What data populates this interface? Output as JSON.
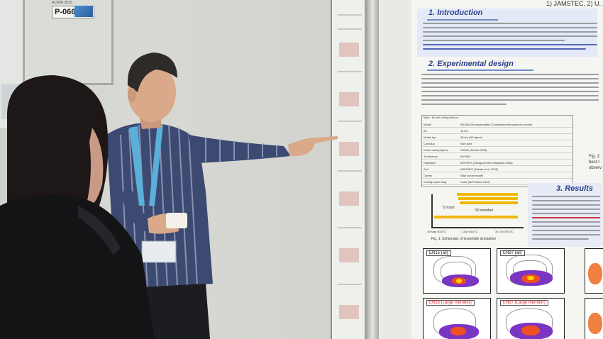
{
  "booth": {
    "panel_tag": "P-066",
    "panel_small_text": "ACRIM 2015"
  },
  "poster": {
    "header": "1) JAMSTEC, 2) U...",
    "sections": [
      {
        "title": "1. Introduction"
      },
      {
        "title": "2. Experimental design"
      },
      {
        "title": "3. Results"
      }
    ],
    "table_caption": "Table : Model configurations",
    "table_rows": [
      "Model",
      "ΔX",
      "Model top",
      "Cumulus",
      "Cloud microphysics",
      "Turbulence",
      "Radiation",
      "Soil",
      "Ocean",
      "Gravity wave drag"
    ],
    "table_values": [
      "NICAM (Nonhydrostatic ICosahedral Atmospheric model)",
      "14 km",
      "40 km (38 layers)",
      "Not used",
      "NSW6 (Tomita 2008)",
      "MYNN2",
      "MSTRNX (Sekiguchi and Nakajima 2008)",
      "MATSIRO (Takata et al. 2003)",
      "Slab ocean model",
      "Used (McFarlane 1987)"
    ],
    "chart": {
      "labels": [
        "5 hours",
        "50 member"
      ],
      "ticks": [
        "19 May 00UTC",
        "1 Jun 00UTC",
        "31 Oct 00UTC"
      ],
      "caption": "Fig. 1: Schematic of ensemble simulation"
    },
    "maps": [
      {
        "label": "EN15 (all)",
        "red": false
      },
      {
        "label": "EN97 (all)",
        "red": false
      },
      {
        "label": "EN15 (Large member)",
        "red": true
      },
      {
        "label": "EN97 (Large member)",
        "red": true
      }
    ],
    "side_labels": [
      "Fig. 2:",
      "best-t",
      "observ"
    ]
  }
}
